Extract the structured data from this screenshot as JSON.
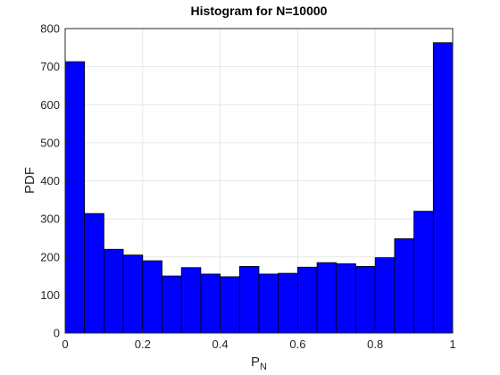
{
  "chart_data": {
    "type": "bar",
    "title": "Histogram for N=10000",
    "xlabel": "P",
    "xlabel_subscript": "N",
    "ylabel": "PDF",
    "bin_edges": [
      0,
      0.05,
      0.1,
      0.15,
      0.2,
      0.25,
      0.3,
      0.35,
      0.4,
      0.45,
      0.5,
      0.55,
      0.6,
      0.65,
      0.7,
      0.75,
      0.8,
      0.85,
      0.9,
      0.95,
      1.0
    ],
    "values": [
      713,
      314,
      220,
      205,
      190,
      150,
      172,
      155,
      148,
      175,
      155,
      157,
      173,
      185,
      182,
      175,
      198,
      248,
      320,
      763
    ],
    "xlim": [
      0,
      1
    ],
    "ylim": [
      0,
      800
    ],
    "xticks": [
      0,
      0.2,
      0.4,
      0.6,
      0.8,
      1
    ],
    "xtick_labels": [
      "0",
      "0.2",
      "0.4",
      "0.6",
      "0.8",
      "1"
    ],
    "yticks": [
      0,
      100,
      200,
      300,
      400,
      500,
      600,
      700,
      800
    ],
    "ytick_labels": [
      "0",
      "100",
      "200",
      "300",
      "400",
      "500",
      "600",
      "700",
      "800"
    ],
    "grid": true,
    "colors": {
      "bar_fill": "#0000ff",
      "bar_edge": "#000000",
      "grid": "#e6e6e6",
      "axis": "#262626"
    }
  }
}
